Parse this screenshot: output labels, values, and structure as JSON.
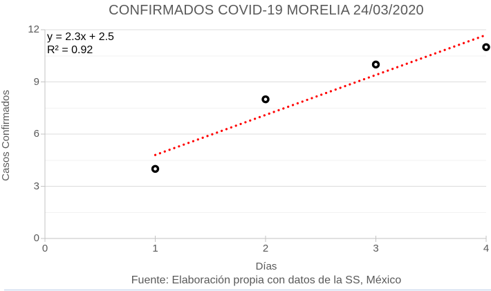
{
  "chart_data": {
    "type": "scatter",
    "title": "CONFIRMADOS COVID-19 MORELIA 24/03/2020",
    "xlabel": "Días",
    "ylabel": "Casos Confirmados",
    "source": "Fuente: Elaboración propia con datos de la SS, México",
    "points": [
      {
        "x": 1,
        "y": 4
      },
      {
        "x": 2,
        "y": 8
      },
      {
        "x": 3,
        "y": 10
      },
      {
        "x": 4,
        "y": 11
      }
    ],
    "xlim": [
      0,
      4
    ],
    "ylim": [
      0,
      12
    ],
    "x_ticks": [
      "0",
      "1",
      "2",
      "3",
      "4"
    ],
    "y_ticks": [
      "0",
      "3",
      "6",
      "9",
      "12"
    ],
    "major_gridline_step": 3,
    "minor_gridline_step": 1.5,
    "grid": true,
    "legend": "none",
    "marker": {
      "shape": "open-circle",
      "color": "#000000"
    },
    "trendline": {
      "equation_label": "y = 2.3x + 2.5",
      "r2_label": "R² = 0.92",
      "slope": 2.3,
      "intercept": 2.5,
      "x_start": 1,
      "x_end": 4,
      "style": "dotted",
      "color": "#ff0000"
    }
  },
  "colors": {
    "background": "#ffffff",
    "title_text": "#595959",
    "axis_text": "#595959",
    "annotation_text": "#000000",
    "axis_line": "#c3c3c3",
    "major_gridline": "#dcdcdc",
    "minor_gridline": "#f2f2f2",
    "trendline": "#ff0000",
    "marker": "#000000",
    "bottom_border": "#b9cce8"
  }
}
